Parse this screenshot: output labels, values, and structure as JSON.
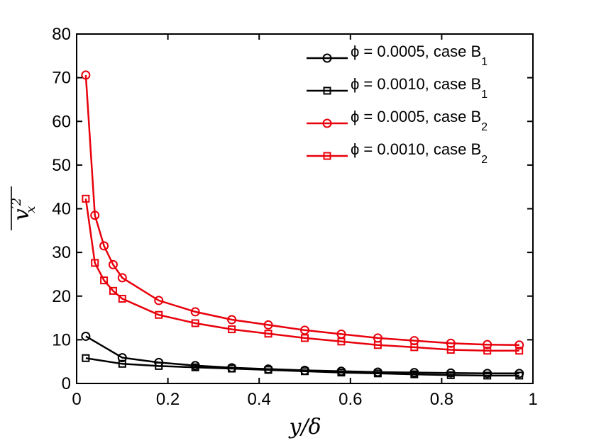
{
  "chart_data": {
    "type": "line",
    "xlabel": "y/δ",
    "ylabel": "v′x²",
    "ylabel_parts": {
      "base": "v",
      "sup": "′2",
      "sub": "x"
    },
    "xlim": [
      0,
      1
    ],
    "ylim": [
      0,
      80
    ],
    "xticks": [
      "0",
      "0.2",
      "0.4",
      "0.6",
      "0.8",
      "1"
    ],
    "yticks": [
      "0",
      "10",
      "20",
      "30",
      "40",
      "50",
      "60",
      "70",
      "80"
    ],
    "grid": false,
    "legend_position": "top-right",
    "series": [
      {
        "name": "ϕ = 0.0005, case B1",
        "legend_main": "ϕ = 0.0005, case B",
        "legend_sub": "1",
        "color": "#000000",
        "marker": "circle",
        "x": [
          0.02,
          0.1,
          0.18,
          0.26,
          0.34,
          0.42,
          0.5,
          0.58,
          0.66,
          0.74,
          0.82,
          0.9,
          0.97
        ],
        "y": [
          10.8,
          5.9,
          4.8,
          4.1,
          3.6,
          3.3,
          3.0,
          2.8,
          2.6,
          2.5,
          2.4,
          2.3,
          2.3
        ]
      },
      {
        "name": "ϕ = 0.0010, case B1",
        "legend_main": "ϕ = 0.0010, case B",
        "legend_sub": "1",
        "color": "#000000",
        "marker": "square",
        "x": [
          0.02,
          0.1,
          0.18,
          0.26,
          0.34,
          0.42,
          0.5,
          0.58,
          0.66,
          0.74,
          0.82,
          0.9,
          0.97
        ],
        "y": [
          5.8,
          4.5,
          4.0,
          3.7,
          3.4,
          3.1,
          2.8,
          2.5,
          2.3,
          2.1,
          1.9,
          1.8,
          1.8
        ]
      },
      {
        "name": "ϕ = 0.0005, case B2",
        "legend_main": "ϕ = 0.0005, case B",
        "legend_sub": "2",
        "color": "#e8000b",
        "marker": "circle",
        "x": [
          0.02,
          0.04,
          0.06,
          0.08,
          0.1,
          0.18,
          0.26,
          0.34,
          0.42,
          0.5,
          0.58,
          0.66,
          0.74,
          0.82,
          0.9,
          0.97
        ],
        "y": [
          70.6,
          38.5,
          31.5,
          27.2,
          24.2,
          19.0,
          16.4,
          14.6,
          13.4,
          12.2,
          11.3,
          10.4,
          9.8,
          9.2,
          8.9,
          8.8
        ]
      },
      {
        "name": "ϕ = 0.0010, case B2",
        "legend_main": "ϕ = 0.0010, case B",
        "legend_sub": "2",
        "color": "#e8000b",
        "marker": "square",
        "x": [
          0.02,
          0.04,
          0.06,
          0.08,
          0.1,
          0.18,
          0.26,
          0.34,
          0.42,
          0.5,
          0.58,
          0.66,
          0.74,
          0.82,
          0.9,
          0.97
        ],
        "y": [
          42.3,
          27.6,
          23.6,
          21.2,
          19.4,
          15.7,
          13.8,
          12.4,
          11.4,
          10.4,
          9.6,
          8.8,
          8.3,
          7.7,
          7.5,
          7.5
        ]
      }
    ]
  }
}
